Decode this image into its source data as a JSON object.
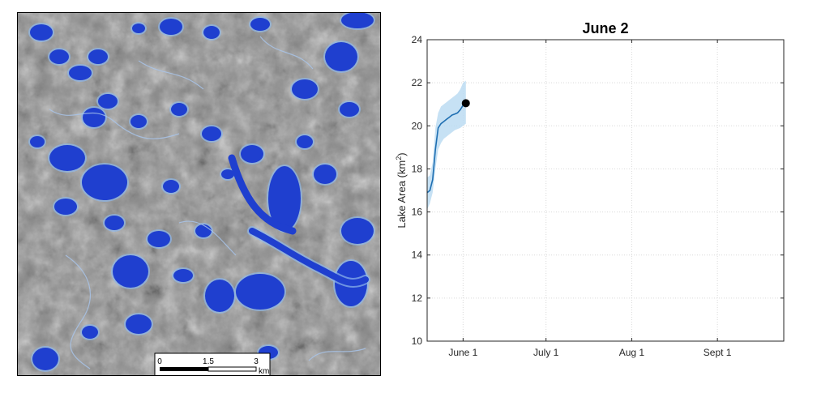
{
  "map": {
    "scale_bar": {
      "ticks": [
        "0",
        "1.5",
        "3"
      ],
      "unit": "km"
    },
    "colors": {
      "lake": "#1f3fcf",
      "lake_edge": "#8fb8ea",
      "terrain": "#8a8a8a"
    }
  },
  "chart_data": {
    "type": "line",
    "title": "June 2",
    "ylabel": "Lake Area (km²)",
    "xlabel": "",
    "ylim": [
      10,
      24
    ],
    "yticks": [
      10,
      12,
      14,
      16,
      18,
      20,
      22,
      24
    ],
    "xlim": [
      "2019-05-19",
      "2019-09-25"
    ],
    "xticks": [
      {
        "date": "2019-06-01",
        "label": "June 1"
      },
      {
        "date": "2019-07-01",
        "label": "July 1"
      },
      {
        "date": "2019-08-01",
        "label": "Aug 1"
      },
      {
        "date": "2019-09-01",
        "label": "Sept 1"
      }
    ],
    "grid": true,
    "series": [
      {
        "x": [
          "2019-05-19",
          "2019-05-20",
          "2019-05-21",
          "2019-05-22",
          "2019-05-23",
          "2019-05-24",
          "2019-05-25",
          "2019-05-26",
          "2019-05-27",
          "2019-05-28",
          "2019-05-29",
          "2019-05-30",
          "2019-05-31",
          "2019-06-01",
          "2019-06-02"
        ],
        "y": [
          16.9,
          17.0,
          17.5,
          18.9,
          19.9,
          20.1,
          20.2,
          20.3,
          20.4,
          20.5,
          20.55,
          20.6,
          20.75,
          20.95,
          21.05
        ],
        "lower": [
          16.1,
          16.4,
          16.9,
          18.0,
          18.9,
          19.2,
          19.4,
          19.5,
          19.6,
          19.7,
          19.8,
          19.85,
          19.9,
          20.0,
          20.1
        ],
        "upper": [
          17.6,
          17.7,
          18.3,
          19.9,
          20.6,
          20.9,
          21.0,
          21.1,
          21.2,
          21.3,
          21.4,
          21.5,
          21.7,
          22.0,
          22.1
        ]
      }
    ],
    "current_point": {
      "x": "2019-06-02",
      "y": 21.05
    },
    "colors": {
      "line": "#1f6fb2",
      "band": "#bcdcf2",
      "marker": "#000000"
    }
  }
}
